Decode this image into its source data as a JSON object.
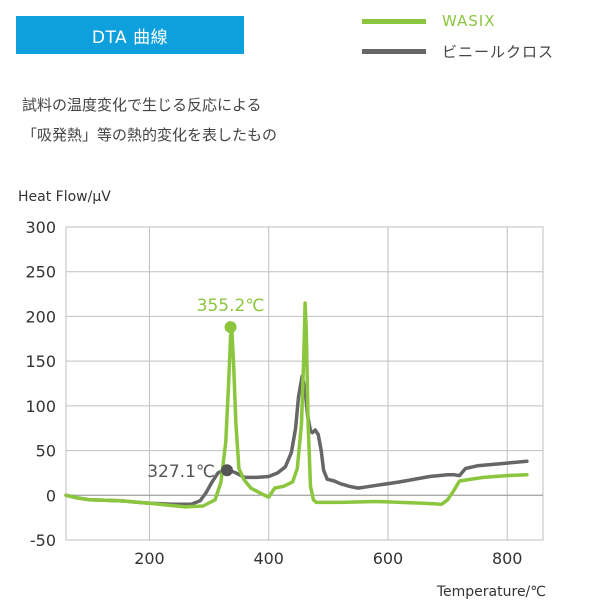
{
  "header": {
    "title": "DTA 曲線"
  },
  "description": [
    "試料の温度変化で生じる反応による",
    "「吸発熱」等の熱的変化を表したもの"
  ],
  "colors": {
    "wasix": "#8cc63f",
    "vinyl": "#666666",
    "title_bg": "#0ea0dc",
    "grid": "#bfbfbf"
  },
  "chart_data": {
    "type": "line",
    "xlabel": "Temperature/℃",
    "ylabel": "Heat Flow/μV",
    "xlim": [
      60,
      860
    ],
    "ylim": [
      -50,
      300
    ],
    "xticks": [
      200,
      400,
      600,
      800
    ],
    "yticks": [
      300,
      250,
      200,
      150,
      100,
      50,
      0,
      -50
    ],
    "grid": true,
    "legend_position": "top-right",
    "series": [
      {
        "name": "WASIX",
        "color": "#8cc63f",
        "points": [
          [
            60,
            0
          ],
          [
            80,
            -3
          ],
          [
            100,
            -5
          ],
          [
            150,
            -6
          ],
          [
            200,
            -9
          ],
          [
            230,
            -11
          ],
          [
            260,
            -13
          ],
          [
            290,
            -12
          ],
          [
            310,
            -5
          ],
          [
            320,
            15
          ],
          [
            328,
            60
          ],
          [
            333,
            130
          ],
          [
            336,
            178
          ],
          [
            338,
            185
          ],
          [
            341,
            150
          ],
          [
            345,
            80
          ],
          [
            350,
            30
          ],
          [
            358,
            18
          ],
          [
            370,
            8
          ],
          [
            390,
            1
          ],
          [
            400,
            -2
          ],
          [
            410,
            8
          ],
          [
            425,
            10
          ],
          [
            440,
            15
          ],
          [
            448,
            30
          ],
          [
            455,
            80
          ],
          [
            459,
            160
          ],
          [
            461,
            215
          ],
          [
            463,
            185
          ],
          [
            466,
            80
          ],
          [
            470,
            10
          ],
          [
            475,
            -5
          ],
          [
            480,
            -8
          ],
          [
            520,
            -8
          ],
          [
            580,
            -7
          ],
          [
            620,
            -8
          ],
          [
            660,
            -9
          ],
          [
            690,
            -10
          ],
          [
            700,
            -5
          ],
          [
            710,
            5
          ],
          [
            720,
            16
          ],
          [
            760,
            20
          ],
          [
            800,
            22
          ],
          [
            833,
            23
          ]
        ]
      },
      {
        "name": "ビニールクロス",
        "color": "#666666",
        "points": [
          [
            60,
            0
          ],
          [
            80,
            -3
          ],
          [
            100,
            -5
          ],
          [
            150,
            -6
          ],
          [
            200,
            -9
          ],
          [
            240,
            -10
          ],
          [
            270,
            -10
          ],
          [
            285,
            -6
          ],
          [
            295,
            3
          ],
          [
            305,
            15
          ],
          [
            315,
            25
          ],
          [
            325,
            28
          ],
          [
            333,
            28
          ],
          [
            345,
            25
          ],
          [
            360,
            20
          ],
          [
            380,
            20
          ],
          [
            400,
            21
          ],
          [
            415,
            25
          ],
          [
            428,
            32
          ],
          [
            438,
            48
          ],
          [
            445,
            75
          ],
          [
            450,
            110
          ],
          [
            456,
            133
          ],
          [
            461,
            118
          ],
          [
            465,
            90
          ],
          [
            470,
            72
          ],
          [
            473,
            70
          ],
          [
            478,
            73
          ],
          [
            483,
            68
          ],
          [
            488,
            50
          ],
          [
            492,
            28
          ],
          [
            498,
            18
          ],
          [
            510,
            16
          ],
          [
            520,
            13
          ],
          [
            535,
            10
          ],
          [
            550,
            8
          ],
          [
            570,
            10
          ],
          [
            620,
            15
          ],
          [
            670,
            21
          ],
          [
            700,
            23
          ],
          [
            710,
            23
          ],
          [
            720,
            22
          ],
          [
            730,
            30
          ],
          [
            750,
            33
          ],
          [
            800,
            36
          ],
          [
            833,
            38
          ]
        ]
      }
    ],
    "annotations": [
      {
        "label": "355.2℃",
        "x": 336,
        "y": 188,
        "color": "#8cc63f",
        "side": "above"
      },
      {
        "label": "327.1℃",
        "x": 330,
        "y": 28,
        "color": "#555555",
        "side": "left"
      }
    ]
  }
}
